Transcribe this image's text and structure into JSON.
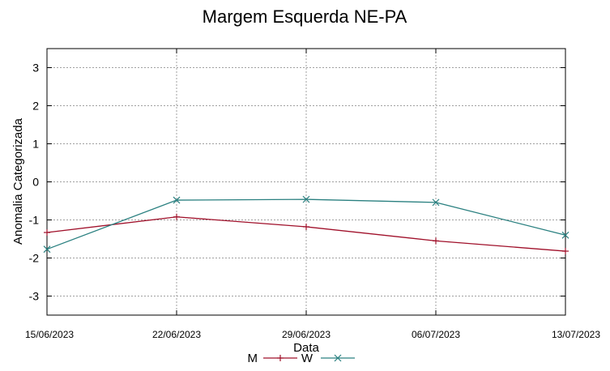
{
  "chart_data": {
    "type": "line",
    "title": "Margem Esquerda NE-PA",
    "xlabel": "Data",
    "ylabel": "Anomalia Categorizada",
    "categories": [
      "15/06/2023",
      "22/06/2023",
      "29/06/2023",
      "06/07/2023",
      "13/07/2023"
    ],
    "ylim": [
      -3.5,
      3.5
    ],
    "yticks": [
      -3,
      -2,
      -1,
      0,
      1,
      2,
      3
    ],
    "grid": true,
    "legend_position": "bottom-center",
    "series": [
      {
        "name": "M",
        "color": "#a0102a",
        "marker": "plus",
        "values": [
          -1.33,
          -0.92,
          -1.18,
          -1.55,
          -1.82
        ]
      },
      {
        "name": "W",
        "color": "#2a8080",
        "marker": "x",
        "values": [
          -1.77,
          -0.48,
          -0.46,
          -0.54,
          -1.4
        ]
      }
    ]
  }
}
